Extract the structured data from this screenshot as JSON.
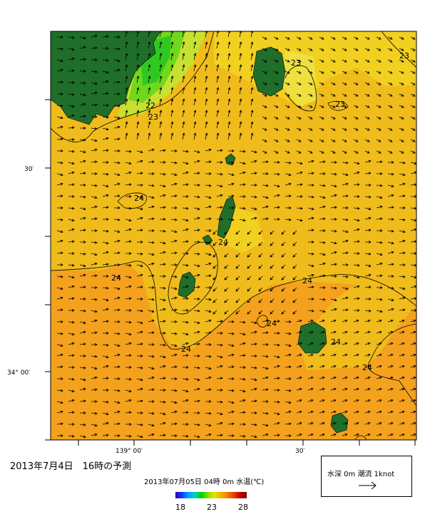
{
  "title": "2013年7月4日　16時の予測",
  "subtitle": "2013年07月05日 04時 0m 水温(℃)",
  "colorbar": {
    "min": "18",
    "mid": "23",
    "max": "28"
  },
  "legend": {
    "label": "水深 0m  潮流 1knot"
  },
  "axes": {
    "lat_labels": [
      "30′",
      "34° 00′"
    ],
    "lon_labels": [
      "139° 00′",
      "30′"
    ]
  },
  "contour_labels": [
    "22",
    "23",
    "23",
    "23",
    "23",
    "24",
    "24",
    "24",
    "24",
    "24",
    "24",
    "24",
    "24"
  ],
  "colors": {
    "land": "#1f6e2a",
    "water_warm": "#f5a020",
    "water_mid": "#f0c020",
    "water_cool": "#e8e030",
    "water_cold": "#60d020"
  },
  "icons": {
    "legend_arrow": "right-arrow-icon",
    "current_vectors": "arrow-icon"
  }
}
